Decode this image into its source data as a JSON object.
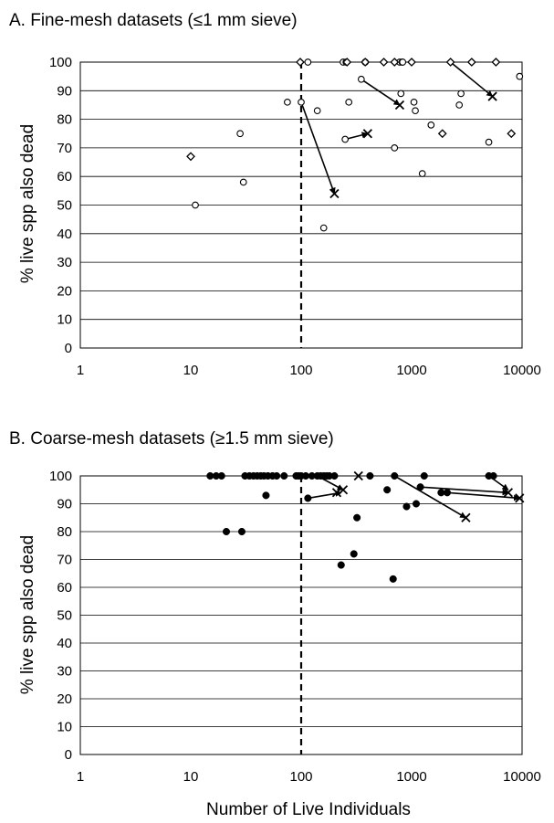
{
  "chart_data": [
    {
      "type": "scatter",
      "title": "A.  Fine-mesh datasets (≤1 mm sieve)",
      "xlabel": "",
      "ylabel": "% live spp also dead",
      "xscale": "log",
      "xlim": [
        1,
        10000
      ],
      "ylim": [
        0,
        100
      ],
      "xticks": [
        "1",
        "10",
        "100",
        "1000",
        "10000"
      ],
      "yticks": [
        "0",
        "10",
        "20",
        "30",
        "40",
        "50",
        "60",
        "70",
        "80",
        "90",
        "100"
      ],
      "grid": "horizontal",
      "reference_line_x": 100,
      "series": [
        {
          "marker": "open-circle",
          "points": [
            [
              11,
              50
            ],
            [
              28,
              75
            ],
            [
              30,
              58
            ],
            [
              75,
              86
            ],
            [
              100,
              86
            ],
            [
              115,
              100
            ],
            [
              140,
              83
            ],
            [
              160,
              42
            ],
            [
              250,
              73
            ],
            [
              240,
              100
            ],
            [
              255,
              100
            ],
            [
              270,
              86
            ],
            [
              350,
              94
            ],
            [
              380,
              100
            ],
            [
              700,
              70
            ],
            [
              780,
              100
            ],
            [
              800,
              89
            ],
            [
              820,
              100
            ],
            [
              830,
              100
            ],
            [
              1050,
              86
            ],
            [
              1080,
              83
            ],
            [
              1250,
              61
            ],
            [
              1500,
              78
            ],
            [
              2700,
              85
            ],
            [
              2800,
              89
            ],
            [
              5000,
              72
            ],
            [
              9500,
              95
            ]
          ]
        },
        {
          "marker": "open-diamond",
          "points": [
            [
              10,
              67
            ],
            [
              98,
              100
            ],
            [
              260,
              100
            ],
            [
              380,
              100
            ],
            [
              560,
              100
            ],
            [
              700,
              100
            ],
            [
              1000,
              100
            ],
            [
              1900,
              75
            ],
            [
              2250,
              100
            ],
            [
              3500,
              100
            ],
            [
              5800,
              100
            ],
            [
              8000,
              75
            ]
          ]
        },
        {
          "marker": "x",
          "points": [
            [
              200,
              54
            ],
            [
              400,
              75
            ],
            [
              780,
              85
            ],
            [
              5400,
              88
            ]
          ]
        }
      ],
      "arrows": [
        {
          "from": [
            100,
            86
          ],
          "to": [
            200,
            54
          ]
        },
        {
          "from": [
            250,
            73
          ],
          "to": [
            400,
            75
          ]
        },
        {
          "from": [
            350,
            94
          ],
          "to": [
            780,
            85
          ]
        },
        {
          "from": [
            2250,
            100
          ],
          "to": [
            5400,
            88
          ]
        }
      ]
    },
    {
      "type": "scatter",
      "title": "B.  Coarse-mesh datasets (≥1.5 mm sieve)",
      "xlabel": "Number of Live Individuals",
      "ylabel": "% live spp also dead",
      "xscale": "log",
      "xlim": [
        1,
        10000
      ],
      "ylim": [
        0,
        100
      ],
      "xticks": [
        "1",
        "10",
        "100",
        "1000",
        "10000"
      ],
      "yticks": [
        "0",
        "10",
        "20",
        "30",
        "40",
        "50",
        "60",
        "70",
        "80",
        "90",
        "100"
      ],
      "grid": "horizontal",
      "reference_line_x": 100,
      "series": [
        {
          "marker": "filled-circle",
          "points": [
            [
              15,
              100
            ],
            [
              17,
              100
            ],
            [
              19,
              100
            ],
            [
              21,
              80
            ],
            [
              29,
              80
            ],
            [
              31,
              100
            ],
            [
              34,
              100
            ],
            [
              37,
              100
            ],
            [
              40,
              100
            ],
            [
              43,
              100
            ],
            [
              46,
              100
            ],
            [
              48,
              93
            ],
            [
              50,
              100
            ],
            [
              55,
              100
            ],
            [
              60,
              100
            ],
            [
              70,
              100
            ],
            [
              90,
              100
            ],
            [
              95,
              100
            ],
            [
              100,
              100
            ],
            [
              110,
              100
            ],
            [
              115,
              92
            ],
            [
              125,
              100
            ],
            [
              140,
              100
            ],
            [
              150,
              100
            ],
            [
              160,
              100
            ],
            [
              170,
              100
            ],
            [
              180,
              100
            ],
            [
              200,
              100
            ],
            [
              230,
              68
            ],
            [
              300,
              72
            ],
            [
              320,
              85
            ],
            [
              420,
              100
            ],
            [
              600,
              95
            ],
            [
              680,
              63
            ],
            [
              700,
              100
            ],
            [
              900,
              89
            ],
            [
              1100,
              90
            ],
            [
              1200,
              96
            ],
            [
              1300,
              100
            ],
            [
              1850,
              94
            ],
            [
              2100,
              94
            ],
            [
              5000,
              100
            ],
            [
              5500,
              100
            ]
          ]
        },
        {
          "marker": "x",
          "points": [
            [
              210,
              94
            ],
            [
              240,
              95
            ],
            [
              330,
              100
            ],
            [
              3100,
              85
            ],
            [
              7500,
              94
            ],
            [
              9500,
              92
            ]
          ]
        }
      ],
      "arrows": [
        {
          "from": [
            115,
            92
          ],
          "to": [
            230,
            94
          ]
        },
        {
          "from": [
            140,
            100
          ],
          "to": [
            240,
            95
          ]
        },
        {
          "from": [
            700,
            100
          ],
          "to": [
            3100,
            85
          ]
        },
        {
          "from": [
            1200,
            96
          ],
          "to": [
            7500,
            94
          ]
        },
        {
          "from": [
            2100,
            94
          ],
          "to": [
            9500,
            92
          ]
        },
        {
          "from": [
            5000,
            100
          ],
          "to": [
            7500,
            95
          ]
        }
      ]
    }
  ]
}
